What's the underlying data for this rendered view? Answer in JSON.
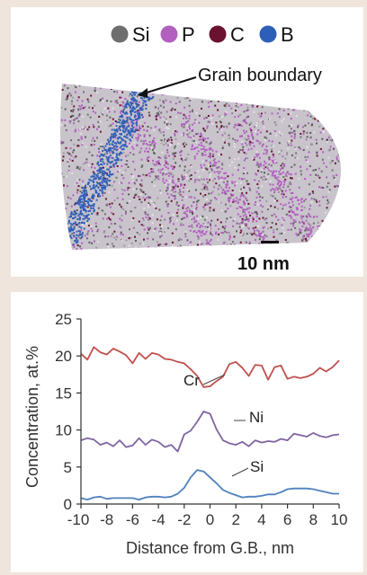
{
  "atom_map": {
    "legend": [
      {
        "label": "Si",
        "color": "#6e6e6e"
      },
      {
        "label": "P",
        "color": "#b25fc0"
      },
      {
        "label": "C",
        "color": "#6b1230"
      },
      {
        "label": "B",
        "color": "#2e5fb8"
      }
    ],
    "annotation": "Grain boundary",
    "scale_bar": "10 nm"
  },
  "chart_data": {
    "type": "line",
    "xlabel": "Distance from G.B., nm",
    "ylabel": "Concentration, at.%",
    "xlim": [
      -10,
      10
    ],
    "ylim": [
      0,
      25
    ],
    "x_ticks": [
      -10,
      -8,
      -6,
      -4,
      -2,
      0,
      2,
      4,
      6,
      8,
      10
    ],
    "y_ticks": [
      0,
      5,
      10,
      15,
      20,
      25
    ],
    "grid": false,
    "series": [
      {
        "name": "Cr",
        "color": "#c0504d",
        "x": [
          -10,
          -9.5,
          -9,
          -8.5,
          -8,
          -7.5,
          -7,
          -6.5,
          -6,
          -5.5,
          -5,
          -4.5,
          -4,
          -3.5,
          -3,
          -2.5,
          -2,
          -1.5,
          -1,
          -0.5,
          0,
          0.5,
          1,
          1.5,
          2,
          2.5,
          3,
          3.5,
          4,
          4.5,
          5,
          5.5,
          6,
          6.5,
          7,
          7.5,
          8,
          8.5,
          9,
          9.5,
          10
        ],
        "y": [
          20.3,
          19.5,
          21.2,
          20.5,
          20.2,
          21.0,
          20.6,
          20.1,
          19.0,
          20.4,
          19.6,
          20.4,
          20.2,
          19.6,
          19.5,
          19.2,
          19.0,
          18.2,
          17.3,
          15.8,
          15.9,
          16.6,
          17.2,
          18.9,
          19.2,
          18.4,
          17.3,
          18.8,
          18.7,
          16.8,
          18.5,
          18.7,
          16.9,
          17.2,
          17.0,
          17.2,
          17.6,
          18.4,
          17.9,
          18.5,
          19.4
        ]
      },
      {
        "name": "Ni",
        "color": "#8064a2",
        "x": [
          -10,
          -9.5,
          -9,
          -8.5,
          -8,
          -7.5,
          -7,
          -6.5,
          -6,
          -5.5,
          -5,
          -4.5,
          -4,
          -3.5,
          -3,
          -2.5,
          -2,
          -1.5,
          -1,
          -0.5,
          0,
          0.5,
          1,
          1.5,
          2,
          2.5,
          3,
          3.5,
          4,
          4.5,
          5,
          5.5,
          6,
          6.5,
          7,
          7.5,
          8,
          8.5,
          9,
          9.5,
          10
        ],
        "y": [
          8.6,
          8.9,
          8.7,
          8.0,
          8.3,
          7.8,
          8.6,
          7.7,
          7.9,
          8.9,
          8.0,
          8.7,
          8.4,
          7.7,
          8.0,
          7.1,
          9.4,
          9.9,
          11.1,
          12.5,
          12.2,
          10.1,
          8.6,
          8.2,
          8.0,
          8.4,
          7.8,
          8.6,
          8.3,
          8.5,
          8.4,
          8.8,
          8.6,
          9.5,
          9.3,
          9.1,
          9.6,
          9.2,
          9.0,
          9.3,
          9.4
        ]
      },
      {
        "name": "Si",
        "color": "#4f81bd",
        "x": [
          -10,
          -9.5,
          -9,
          -8.5,
          -8,
          -7.5,
          -7,
          -6.5,
          -6,
          -5.5,
          -5,
          -4.5,
          -4,
          -3.5,
          -3,
          -2.5,
          -2,
          -1.5,
          -1,
          -0.5,
          0,
          0.5,
          1,
          1.5,
          2,
          2.5,
          3,
          3.5,
          4,
          4.5,
          5,
          5.5,
          6,
          6.5,
          7,
          7.5,
          8,
          8.5,
          9,
          9.5,
          10
        ],
        "y": [
          0.8,
          0.6,
          0.9,
          1.0,
          0.7,
          0.8,
          0.8,
          0.8,
          0.8,
          0.6,
          0.9,
          1.0,
          1.0,
          0.9,
          1.0,
          1.4,
          2.2,
          3.6,
          4.6,
          4.4,
          3.6,
          2.8,
          1.9,
          1.5,
          1.2,
          0.9,
          1.0,
          1.0,
          1.1,
          1.3,
          1.3,
          1.6,
          2.0,
          2.1,
          2.1,
          2.1,
          2.0,
          1.8,
          1.6,
          1.4,
          1.4
        ]
      }
    ]
  }
}
